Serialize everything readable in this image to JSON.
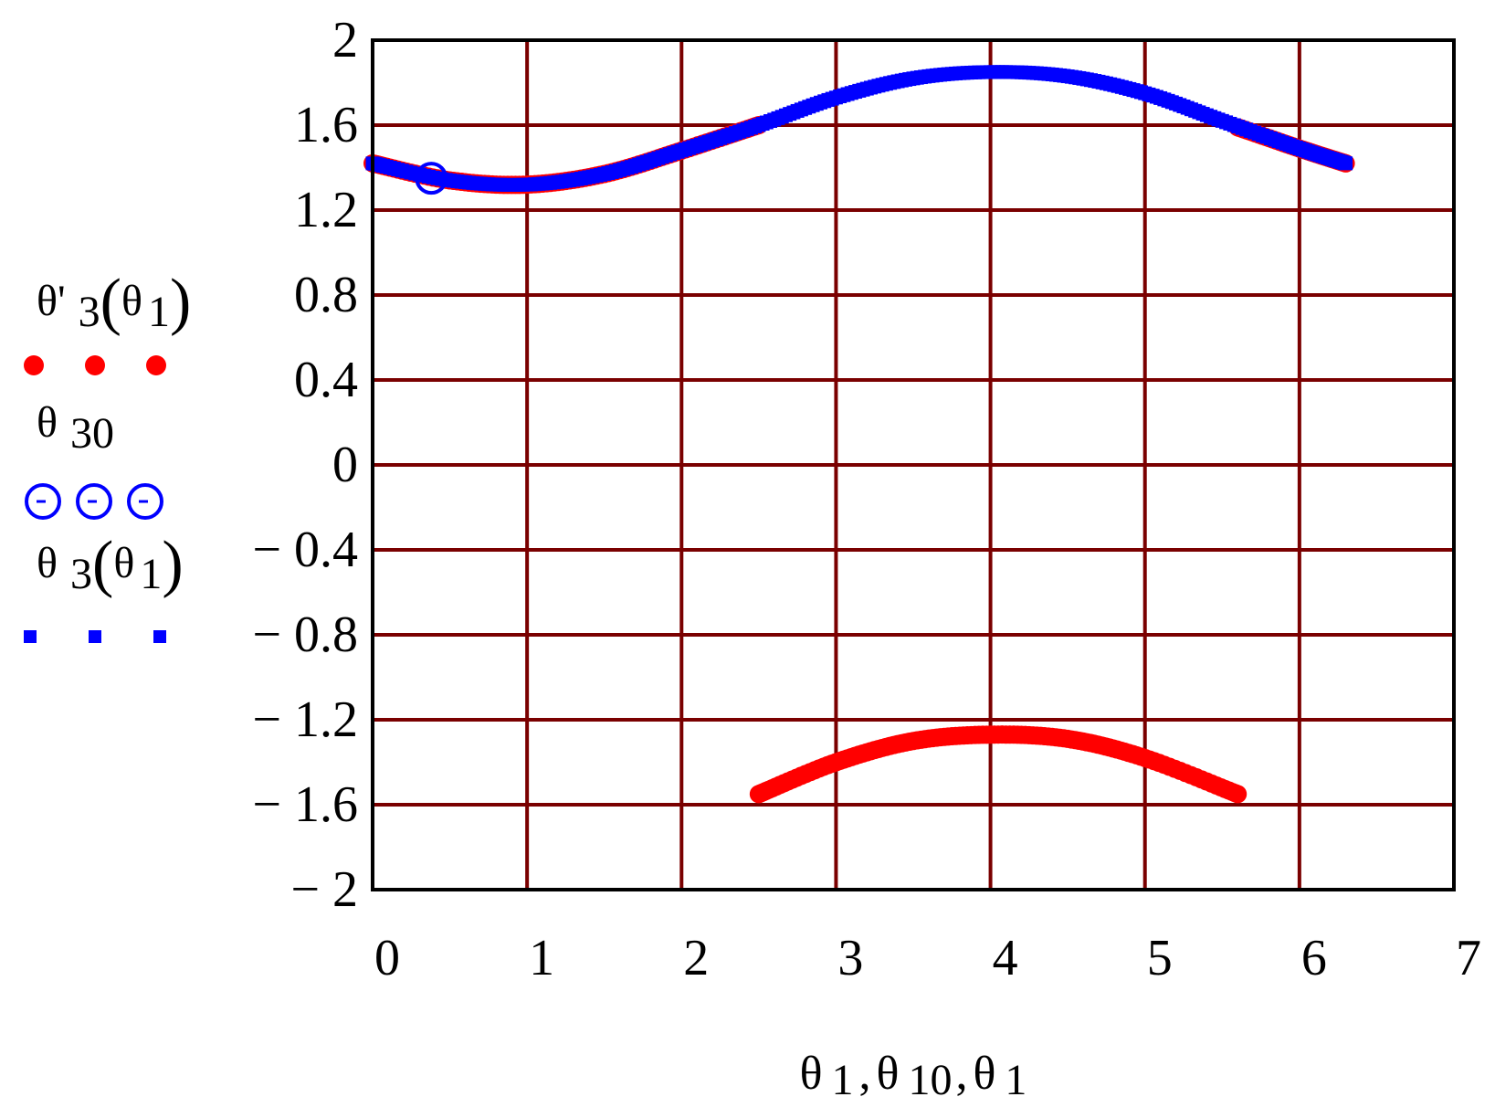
{
  "chart_data": {
    "type": "scatter",
    "xlabel": {
      "parts": [
        "θ",
        "1",
        ",",
        "θ",
        "10",
        ",",
        "θ",
        "1"
      ]
    },
    "xlim": [
      0,
      7
    ],
    "ylim": [
      -2,
      2
    ],
    "x_ticks": [
      0,
      1,
      2,
      3,
      4,
      5,
      6,
      7
    ],
    "x_tick_labels": [
      "0",
      "1",
      "2",
      "3",
      "4",
      "5",
      "6",
      "7"
    ],
    "y_ticks": [
      2,
      1.6,
      1.2,
      0.8,
      0.4,
      0,
      -0.4,
      -0.8,
      -1.2,
      -1.6,
      -2
    ],
    "y_tick_labels": [
      "2",
      "1.6",
      "1.2",
      "0.8",
      "0.4",
      "0",
      "− 0.4",
      "− 0.8",
      "− 1.2",
      "− 1.6",
      "− 2"
    ],
    "grid": true,
    "colors": {
      "grid": "#7a0000",
      "frame": "#000000",
      "red": "#ff0000",
      "blue": "#0000ff"
    },
    "series": [
      {
        "key": "theta_prime_3",
        "label_parts": [
          "θ'",
          "3",
          "(",
          "θ",
          "1",
          ")"
        ],
        "marker": "filled-circle",
        "color": "#ff0000",
        "segments": [
          {
            "x": [
              0,
              0.5,
              1,
              1.5,
              2,
              2.5
            ],
            "y": [
              1.42,
              1.34,
              1.32,
              1.37,
              1.48,
              1.6
            ]
          },
          {
            "x": [
              2.5,
              3,
              3.5,
              4,
              4.5,
              5,
              5.6
            ],
            "y": [
              -1.55,
              -1.4,
              -1.3,
              -1.27,
              -1.29,
              -1.38,
              -1.55
            ]
          },
          {
            "x": [
              5.6,
              6,
              6.3
            ],
            "y": [
              1.59,
              1.49,
              1.42
            ]
          }
        ]
      },
      {
        "key": "theta_30",
        "label_parts": [
          "θ",
          "30"
        ],
        "marker": "open-circle",
        "color": "#0000ff",
        "points": {
          "x": [
            0.38
          ],
          "y": [
            1.35
          ]
        }
      },
      {
        "key": "theta_3",
        "label_parts": [
          "θ",
          "3",
          "(",
          "θ",
          "1",
          ")"
        ],
        "marker": "filled-square",
        "color": "#0000ff",
        "segments": [
          {
            "x": [
              0,
              0.5,
              1,
              1.5,
              2,
              2.5,
              3,
              3.5,
              4,
              4.5,
              5,
              5.5,
              6,
              6.3
            ],
            "y": [
              1.42,
              1.34,
              1.32,
              1.37,
              1.48,
              1.6,
              1.73,
              1.82,
              1.85,
              1.83,
              1.75,
              1.62,
              1.49,
              1.42
            ]
          }
        ]
      }
    ]
  }
}
